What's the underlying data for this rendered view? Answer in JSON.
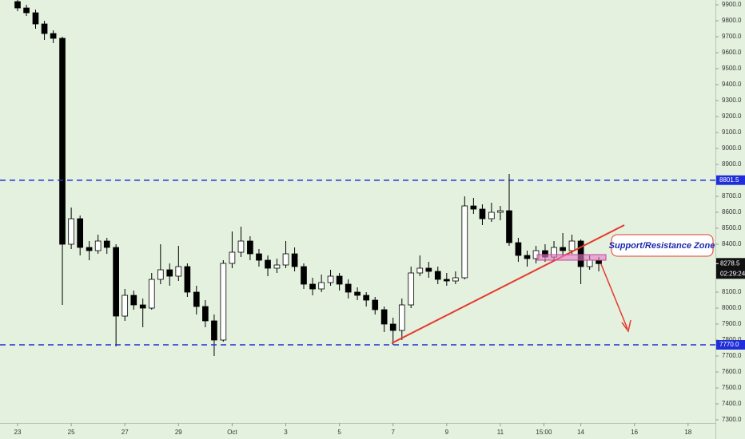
{
  "chart_data": {
    "type": "candlestick",
    "x": [
      0,
      0.33,
      0.67,
      1,
      1.33,
      1.67,
      2,
      2.33,
      2.67,
      3,
      3.33,
      3.67,
      4,
      4.33,
      4.67,
      5,
      5.33,
      5.67,
      6,
      6.33,
      6.67,
      7,
      7.33,
      7.67,
      8,
      8.33,
      8.67,
      9,
      9.33,
      9.67,
      10,
      10.33,
      10.67,
      11,
      11.33,
      11.67,
      12,
      12.33,
      12.67,
      13,
      13.33,
      13.67,
      14,
      14.33,
      14.67,
      15,
      15.33,
      15.67,
      16,
      16.33,
      16.67,
      17,
      17.33,
      17.67,
      18,
      18.33,
      18.67,
      19,
      19.33,
      19.67,
      20,
      20.33,
      20.67,
      21,
      21.33,
      21.67
    ],
    "open": [
      9920,
      9880,
      9850,
      9780,
      9720,
      9690,
      8400,
      8560,
      8380,
      8360,
      8420,
      8380,
      7950,
      8080,
      8020,
      8000,
      8180,
      8240,
      8200,
      8260,
      8100,
      8010,
      7920,
      7800,
      8280,
      8350,
      8420,
      8340,
      8300,
      8250,
      8270,
      8340,
      8260,
      8150,
      8120,
      8160,
      8200,
      8150,
      8100,
      8080,
      8050,
      7990,
      7900,
      7860,
      8020,
      8220,
      8250,
      8230,
      8180,
      8170,
      8190,
      8640,
      8620,
      8560,
      8600,
      8610,
      8410,
      8330,
      8310,
      8360,
      8320,
      8380,
      8360,
      8420,
      8260,
      8300
    ],
    "high": [
      9935,
      9900,
      9870,
      9800,
      9740,
      9700,
      8630,
      8580,
      8420,
      8460,
      8440,
      8400,
      8120,
      8110,
      8060,
      8220,
      8400,
      8280,
      8390,
      8280,
      8140,
      8050,
      7960,
      8300,
      8480,
      8510,
      8450,
      8370,
      8330,
      8310,
      8420,
      8380,
      8280,
      8190,
      8210,
      8240,
      8220,
      8180,
      8130,
      8100,
      8070,
      8010,
      7940,
      8060,
      8260,
      8330,
      8290,
      8260,
      8220,
      8230,
      8700,
      8690,
      8650,
      8660,
      8640,
      8840,
      8440,
      8360,
      8390,
      8400,
      8420,
      8470,
      8460,
      8430,
      8330,
      8320
    ],
    "low": [
      9860,
      9830,
      9750,
      9680,
      9660,
      8020,
      8370,
      8330,
      8300,
      8340,
      8340,
      7760,
      7920,
      7990,
      7880,
      7990,
      8150,
      8140,
      8170,
      8070,
      7960,
      7880,
      7700,
      7790,
      8250,
      8320,
      8300,
      8260,
      8200,
      8220,
      8250,
      8230,
      8120,
      8080,
      8100,
      8140,
      8110,
      8060,
      8050,
      8010,
      7960,
      7850,
      7770,
      7800,
      8000,
      8200,
      8190,
      8150,
      8140,
      8150,
      8180,
      8590,
      8520,
      8540,
      8550,
      8390,
      8290,
      8260,
      8280,
      8290,
      8300,
      8330,
      8340,
      8150,
      8240,
      8230
    ],
    "close": [
      9880,
      9850,
      9780,
      9720,
      9690,
      8400,
      8560,
      8380,
      8360,
      8420,
      8380,
      7950,
      8080,
      8020,
      8000,
      8180,
      8240,
      8200,
      8260,
      8100,
      8010,
      7920,
      7800,
      8280,
      8350,
      8420,
      8340,
      8300,
      8250,
      8270,
      8340,
      8260,
      8150,
      8120,
      8160,
      8200,
      8150,
      8100,
      8080,
      8050,
      7990,
      7900,
      7860,
      8020,
      8220,
      8250,
      8230,
      8180,
      8170,
      8190,
      8640,
      8620,
      8560,
      8600,
      8610,
      8410,
      8330,
      8310,
      8360,
      8320,
      8380,
      8360,
      8420,
      8260,
      8300,
      8278.5
    ],
    "up_color": "#ffffff",
    "down_color": "#000000",
    "wick_color": "#000000",
    "xlim": [
      -0.656,
      26.02
    ],
    "xticks": [
      {
        "value": 0,
        "label": "23"
      },
      {
        "value": 2,
        "label": "25"
      },
      {
        "value": 4,
        "label": "27"
      },
      {
        "value": 6,
        "label": "29"
      },
      {
        "value": 8,
        "label": "Oct"
      },
      {
        "value": 10,
        "label": "3"
      },
      {
        "value": 12,
        "label": "5"
      },
      {
        "value": 14,
        "label": "7"
      },
      {
        "value": 16,
        "label": "9"
      },
      {
        "value": 18,
        "label": "11"
      },
      {
        "value": 19.625,
        "label": "15:00"
      },
      {
        "value": 21,
        "label": "14"
      },
      {
        "value": 23,
        "label": "16"
      },
      {
        "value": 25,
        "label": "18"
      }
    ],
    "ylim": [
      7280,
      9930
    ],
    "yticks": [
      {
        "value": 7300,
        "label": "7300.0"
      },
      {
        "value": 7400,
        "label": "7400.0"
      },
      {
        "value": 7500,
        "label": "7500.0"
      },
      {
        "value": 7600,
        "label": "7600.0"
      },
      {
        "value": 7700,
        "label": "7700.0"
      },
      {
        "value": 7800,
        "label": "7800.0"
      },
      {
        "value": 7900,
        "label": "7900.0"
      },
      {
        "value": 8000,
        "label": "8000.0"
      },
      {
        "value": 8100,
        "label": "8100.0"
      },
      {
        "value": 8400,
        "label": "8400.0"
      },
      {
        "value": 8500,
        "label": "8500.0"
      },
      {
        "value": 8600,
        "label": "8600.0"
      },
      {
        "value": 8700,
        "label": "8700.0"
      },
      {
        "value": 8900,
        "label": "8900.0"
      },
      {
        "value": 9000,
        "label": "9000.0"
      },
      {
        "value": 9100,
        "label": "9100.0"
      },
      {
        "value": 9200,
        "label": "9200.0"
      },
      {
        "value": 9300,
        "label": "9300.0"
      },
      {
        "value": 9400,
        "label": "9400.0"
      },
      {
        "value": 9500,
        "label": "9500.0"
      },
      {
        "value": 9600,
        "label": "9600.0"
      },
      {
        "value": 9700,
        "label": "9700.0"
      },
      {
        "value": 9800,
        "label": "9800.0"
      },
      {
        "value": 9900,
        "label": "9900.0"
      }
    ],
    "hlines": [
      8801.5,
      {
        "value": 7770,
        "label": "7770.0"
      }
    ],
    "hline_color": "#1f2ed8",
    "last_price": 8278.5,
    "countdown": "02:29:24",
    "annotation": "Support/Resistance Zone"
  }
}
